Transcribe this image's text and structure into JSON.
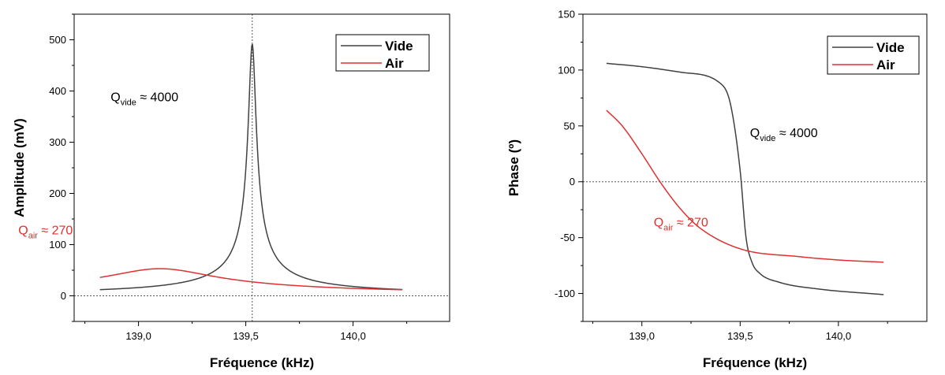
{
  "chart_data": [
    {
      "type": "line",
      "xlabel": "Fréquence (kHz)",
      "ylabel": "Amplitude (mV)",
      "xlim": [
        138.7,
        140.45
      ],
      "ylim": [
        -50,
        550
      ],
      "xticks": [
        139.0,
        139.5,
        140.0
      ],
      "xtick_labels": [
        "139,0",
        "139,5",
        "140,0"
      ],
      "yticks": [
        0,
        100,
        200,
        300,
        400,
        500
      ],
      "ytick_labels": [
        "0",
        "100",
        "200",
        "300",
        "400",
        "500"
      ],
      "grid": false,
      "legend_position": "top-right",
      "reference_lines": {
        "vertical_x": 139.53,
        "horizontal_y": 0
      },
      "series": [
        {
          "name": "Vide",
          "color": "#404040",
          "model": "lorentzian",
          "f0": 139.53,
          "peak": 492,
          "q": 4000,
          "x_range": [
            138.82,
            140.23
          ],
          "x": [
            138.82,
            139.0,
            139.2,
            139.4,
            139.48,
            139.53,
            139.58,
            139.7,
            139.9,
            140.23
          ],
          "y": [
            22,
            27,
            40,
            107,
            270,
            492,
            250,
            75,
            32,
            12
          ]
        },
        {
          "name": "Air",
          "color": "#e03030",
          "model": "lorentzian",
          "f0": 139.1,
          "peak": 53,
          "q": 270,
          "x_range": [
            138.82,
            140.23
          ],
          "x": [
            138.82,
            139.0,
            139.1,
            139.2,
            139.4,
            139.6,
            140.0,
            140.23
          ],
          "y": [
            27,
            48,
            53,
            48,
            30,
            20,
            12,
            10
          ]
        }
      ],
      "annotations": [
        {
          "main": "Q",
          "sub": "vide",
          "suffix": " ≈ 4000",
          "color": "#000000",
          "x": 138.87,
          "y": 380
        },
        {
          "main": "Q",
          "sub": "air",
          "suffix": " ≈ 270",
          "color": "#e03030",
          "x": 138.44,
          "y": 120
        }
      ]
    },
    {
      "type": "line",
      "xlabel": "Fréquence (kHz)",
      "ylabel": "Phase (º)",
      "xlim": [
        138.7,
        140.45
      ],
      "ylim": [
        -125,
        150
      ],
      "xticks": [
        139.0,
        139.5,
        140.0
      ],
      "xtick_labels": [
        "139,0",
        "139,5",
        "140,0"
      ],
      "yticks": [
        -100,
        -50,
        0,
        50,
        100,
        150
      ],
      "ytick_labels": [
        "-100",
        "-50",
        "0",
        "50",
        "100",
        "150"
      ],
      "grid": false,
      "legend_position": "top-right",
      "reference_lines": {
        "horizontal_y": 0
      },
      "series": [
        {
          "name": "Vide",
          "color": "#404040",
          "x": [
            138.82,
            139.0,
            139.2,
            139.4,
            139.45,
            139.5,
            139.53,
            139.56,
            139.6,
            139.7,
            139.9,
            140.23
          ],
          "y": [
            106,
            103,
            98,
            88,
            70,
            10,
            -50,
            -72,
            -82,
            -90,
            -96,
            -101
          ]
        },
        {
          "name": "Air",
          "color": "#e03030",
          "x": [
            138.82,
            138.9,
            139.0,
            139.1,
            139.2,
            139.3,
            139.5,
            139.8,
            140.0,
            140.23
          ],
          "y": [
            64,
            50,
            25,
            -2,
            -25,
            -42,
            -60,
            -67,
            -70,
            -72
          ]
        }
      ],
      "annotations": [
        {
          "main": "Q",
          "sub": "vide",
          "suffix": " ≈ 4000",
          "color": "#000000",
          "x": 139.55,
          "y": 40
        },
        {
          "main": "Q",
          "sub": "air",
          "suffix": " ≈ 270",
          "color": "#e03030",
          "x": 139.06,
          "y": -40
        }
      ]
    }
  ]
}
